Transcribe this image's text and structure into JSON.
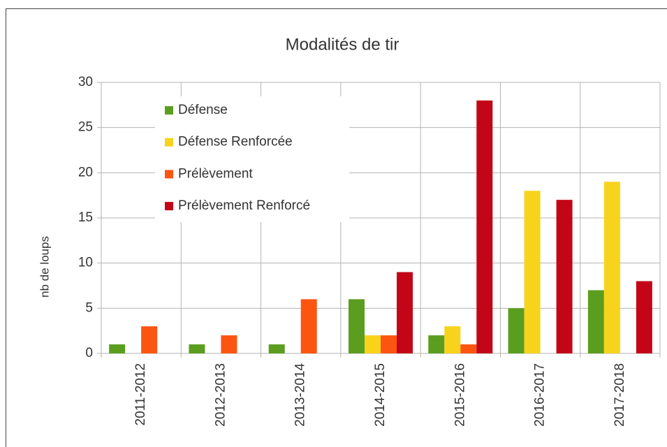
{
  "chart_data": {
    "type": "bar",
    "title": "Modalités de tir",
    "y_label": "nb de loups",
    "categories": [
      "2011-2012",
      "2012-2013",
      "2013-2014",
      "2014-2015",
      "2015-2016",
      "2016-2017",
      "2017-2018"
    ],
    "series": [
      {
        "name": "Défense",
        "color": "#5b9e1f",
        "values": [
          1,
          1,
          1,
          6,
          2,
          5,
          7
        ]
      },
      {
        "name": "Défense Renforcée",
        "color": "#f7d31c",
        "values": [
          0,
          0,
          0,
          2,
          3,
          18,
          19
        ]
      },
      {
        "name": "Prélèvement",
        "color": "#fc5512",
        "values": [
          3,
          2,
          6,
          2,
          1,
          0,
          0
        ]
      },
      {
        "name": "Prélèvement Renforcé",
        "color": "#c30617",
        "values": [
          0,
          0,
          0,
          9,
          28,
          17,
          8
        ]
      }
    ],
    "ylim": [
      0,
      30
    ],
    "yticks": [
      0,
      5,
      10,
      15,
      20,
      25,
      30
    ],
    "grid": true,
    "legend": "upper left"
  }
}
